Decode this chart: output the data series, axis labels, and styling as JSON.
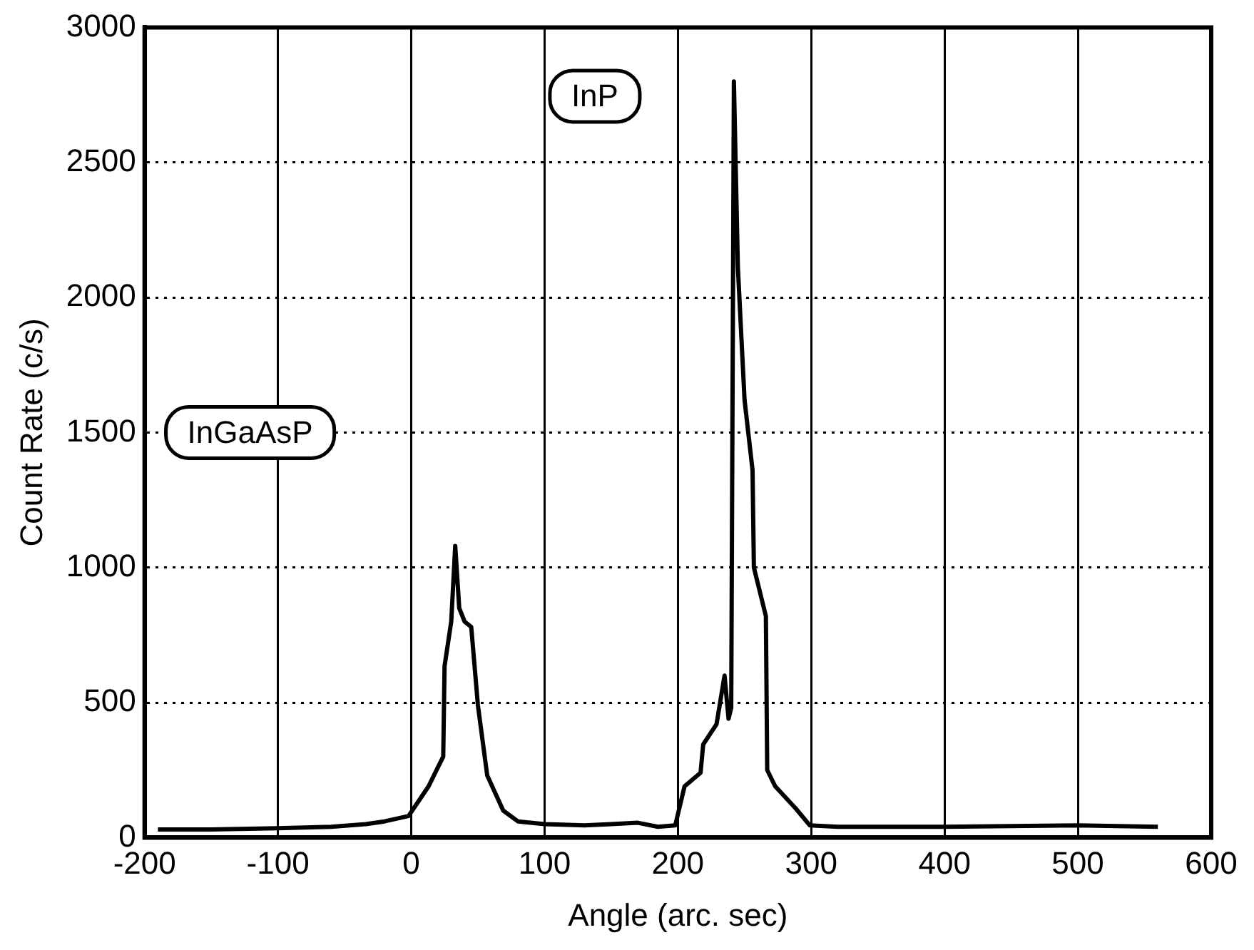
{
  "chart_data": {
    "type": "line",
    "xlabel": "Angle (arc. sec)",
    "ylabel": "Count Rate (c/s)",
    "x": [
      -190,
      -150,
      -100,
      -60,
      -34,
      -20,
      -2,
      13,
      20,
      24,
      25,
      30,
      33,
      36,
      40,
      45,
      50,
      57,
      69,
      80,
      100,
      130,
      150,
      170,
      185,
      198,
      205,
      217,
      219,
      229,
      235,
      238,
      240,
      242,
      245,
      250,
      256,
      257,
      266,
      267,
      273,
      288,
      299,
      320,
      400,
      500,
      560
    ],
    "series": [
      {
        "color": "#000000",
        "values": [
          30,
          30,
          35,
          40,
          50,
          60,
          80,
          190,
          260,
          300,
          635,
          800,
          1080,
          850,
          800,
          780,
          490,
          230,
          100,
          60,
          50,
          45,
          50,
          55,
          40,
          45,
          190,
          240,
          345,
          420,
          600,
          440,
          480,
          2800,
          2110,
          1620,
          1360,
          1000,
          820,
          250,
          190,
          110,
          45,
          40,
          40,
          45,
          40
        ]
      }
    ],
    "xlim": [
      -200,
      600
    ],
    "xticks": [
      -200,
      -100,
      0,
      100,
      200,
      300,
      400,
      500,
      600
    ],
    "ylim": [
      0,
      3000
    ],
    "yticks": [
      0,
      500,
      1000,
      1500,
      2000,
      2500,
      3000
    ],
    "grid": true,
    "legend": false,
    "marker": "none",
    "line_style": "solid",
    "annotations": [
      "InGaAsP",
      "InP"
    ]
  }
}
